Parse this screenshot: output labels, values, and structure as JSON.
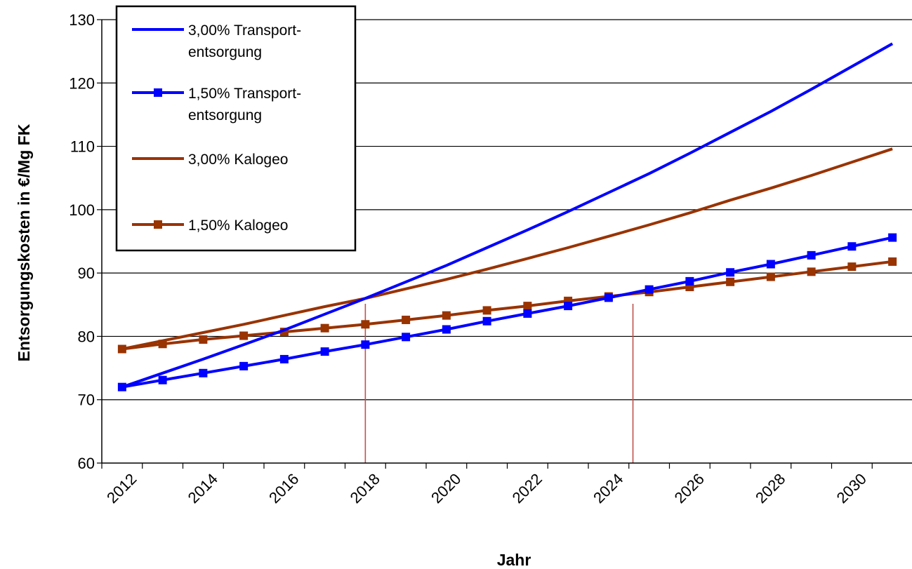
{
  "chart_data": {
    "type": "line",
    "title": "",
    "xlabel": "Jahr",
    "ylabel": "Entsorgungskosten  in €/Mg FK",
    "ylim": [
      60,
      130
    ],
    "yticks": [
      "60",
      "70",
      "80",
      "90",
      "100",
      "110",
      "120",
      "130"
    ],
    "xticks": [
      "2012",
      "2014",
      "2016",
      "2018",
      "2020",
      "2022",
      "2024",
      "2026",
      "2028",
      "2030"
    ],
    "grid": "horizontal",
    "legend_position": "top-left",
    "x": [
      2012,
      2013,
      2014,
      2015,
      2016,
      2017,
      2018,
      2019,
      2020,
      2021,
      2022,
      2023,
      2024,
      2025,
      2026,
      2027,
      2028,
      2029,
      2030,
      2031
    ],
    "vertical_markers": [
      2018,
      2024.6
    ],
    "series": [
      {
        "name_lines": [
          "3,00% Transport-",
          "entsorgung"
        ],
        "color": "#0000ff",
        "marker": "none",
        "values": [
          72.0,
          74.2,
          76.4,
          78.7,
          81.0,
          83.5,
          86.0,
          88.6,
          91.2,
          94.0,
          96.8,
          99.7,
          102.7,
          105.7,
          108.9,
          112.2,
          115.5,
          119.0,
          122.6,
          126.2
        ]
      },
      {
        "name_lines": [
          "1,50% Transport-",
          "entsorgung"
        ],
        "color": "#0000ff",
        "marker": "square",
        "values": [
          72.0,
          73.1,
          74.2,
          75.3,
          76.4,
          77.6,
          78.7,
          79.9,
          81.1,
          82.4,
          83.6,
          84.8,
          86.1,
          87.4,
          88.7,
          90.1,
          91.4,
          92.8,
          94.2,
          95.6
        ]
      },
      {
        "name_lines": [
          "3,00% Kalogeo"
        ],
        "color": "#993300",
        "marker": "none",
        "values": [
          78.0,
          79.3,
          80.6,
          81.9,
          83.3,
          84.7,
          86.0,
          87.5,
          89.0,
          90.6,
          92.3,
          94.0,
          95.8,
          97.6,
          99.5,
          101.5,
          103.4,
          105.4,
          107.5,
          109.6
        ]
      },
      {
        "name_lines": [
          "1,50% Kalogeo"
        ],
        "color": "#993300",
        "marker": "square",
        "values": [
          78.0,
          78.8,
          79.5,
          80.1,
          80.7,
          81.3,
          81.9,
          82.6,
          83.3,
          84.1,
          84.8,
          85.6,
          86.3,
          87.0,
          87.8,
          88.6,
          89.4,
          90.2,
          91.0,
          91.8
        ]
      }
    ]
  }
}
